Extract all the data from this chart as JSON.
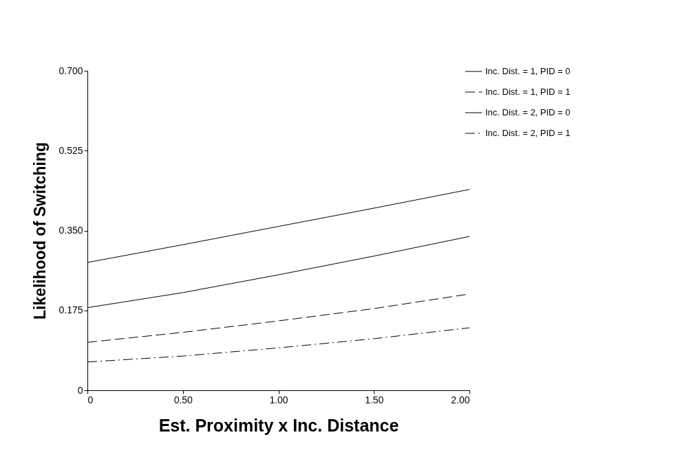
{
  "chart_data": {
    "type": "line",
    "xlabel": "Est. Proximity x Inc. Distance",
    "ylabel": "Likelihood of Switching",
    "x": [
      0,
      0.5,
      1,
      1.5,
      2
    ],
    "series": [
      {
        "name": "Inc. Dist. = 1, PID = 0",
        "color": "#000000",
        "line_style": "solid",
        "values": [
          0.28,
          0.319,
          0.359,
          0.399,
          0.44
        ]
      },
      {
        "name": "Inc. Dist. = 1, PID = 1",
        "color": "#000000",
        "line_style": "dashed",
        "values": [
          0.105,
          0.127,
          0.152,
          0.179,
          0.211
        ]
      },
      {
        "name": "Inc. Dist. = 2, PID = 0",
        "color": "#000000",
        "line_style": "solid",
        "values": [
          0.181,
          0.214,
          0.253,
          0.294,
          0.337
        ]
      },
      {
        "name": "Inc. Dist. = 2, PID = 1",
        "color": "#000000",
        "line_style": "dashed",
        "values": [
          0.062,
          0.075,
          0.093,
          0.113,
          0.137
        ]
      }
    ],
    "xlim": [
      0,
      2
    ],
    "xticks": [
      0,
      {
        "value": 0.5,
        "label": "0.50"
      },
      {
        "value": 1,
        "label": "1.00"
      },
      {
        "value": 1.5,
        "label": "1.50"
      },
      {
        "value": 2,
        "label": "2.00"
      }
    ],
    "ylim": [
      0,
      0.7
    ],
    "yticks": [
      0,
      0.175,
      {
        "value": 0.35,
        "label": "0.350"
      },
      0.525,
      {
        "value": 0.7,
        "label": "0.700"
      }
    ],
    "legend": "top right",
    "marker": "none",
    "grid": false
  }
}
